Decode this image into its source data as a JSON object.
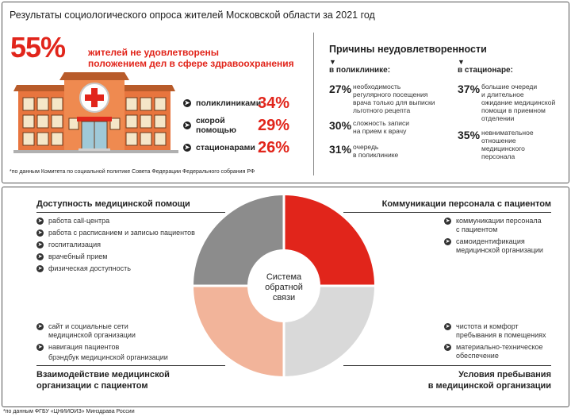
{
  "top": {
    "title": "Результаты социологического опроса жителей Московской области за 2021 год",
    "headline_pct": "55%",
    "headline_text": [
      "жителей не удовлетворены",
      "положением дел в сфере здравоохранения"
    ],
    "categories": [
      {
        "label": "поликлиниками",
        "value": "34%"
      },
      {
        "label": "скорой помощью",
        "value": "29%"
      },
      {
        "label": "стационарами",
        "value": "26%"
      }
    ],
    "footnote": "*по данным Комитета по социальной политике Совета Федерации Федерального собрания РФ",
    "reasons_title": "Причины неудовлетворенности",
    "polyclinic": {
      "heading": "в поликлинике:",
      "items": [
        {
          "pct": "27%",
          "text": [
            "необходимость",
            "регулярного посещения",
            "врача только для выписки",
            "льготного рецепта"
          ]
        },
        {
          "pct": "30%",
          "text": [
            "сложность записи",
            "на прием к врачу"
          ]
        },
        {
          "pct": "31%",
          "text": [
            "очередь",
            "в поликлинике"
          ]
        }
      ]
    },
    "hospital": {
      "heading": "в стационаре:",
      "items": [
        {
          "pct": "37%",
          "text": [
            "большие очереди",
            "и длительное",
            "ожидание медицинской",
            "помощи в приемном",
            "отделении"
          ]
        },
        {
          "pct": "35%",
          "text": [
            "невнимательное",
            "отношение",
            "медицинского",
            "персонала"
          ]
        }
      ]
    }
  },
  "bottom": {
    "center_label": [
      "Система",
      "обратной",
      "связи"
    ],
    "colors": {
      "red": "#e1251b",
      "light_gray": "#d9d9d9",
      "salmon": "#f2b49a",
      "dark_gray": "#8c8c8c"
    },
    "accessibility": {
      "title": "Доступность медицинской помощи",
      "items": [
        "работа call-центра",
        "работа с расписанием и записью пациентов",
        "госпитализация",
        "врачебный прием",
        "физическая доступность"
      ]
    },
    "communication": {
      "title": "Коммуникации персонала с пациентом",
      "items": [
        [
          "коммуникации персонала",
          "с пациентом"
        ],
        [
          "самоидентификация",
          "медицинской организации"
        ]
      ]
    },
    "interaction": {
      "title": [
        "Взаимодействие медицинской",
        "организации с пациентом"
      ],
      "items": [
        [
          "сайт и социальные сети",
          "медицинской организации"
        ],
        [
          "навигация пациентов"
        ],
        [
          "брэндбук медицинской организации"
        ]
      ]
    },
    "conditions": {
      "title": [
        "Условия пребывания",
        "в медицинской организации"
      ],
      "items": [
        [
          "чистота и комфорт",
          "пребывания в помещениях"
        ],
        [
          "материально-техническое",
          "обеспечение"
        ]
      ]
    },
    "footnote": "*по данным ФГБУ «ЦНИИОИЗ» Минздрава России"
  }
}
